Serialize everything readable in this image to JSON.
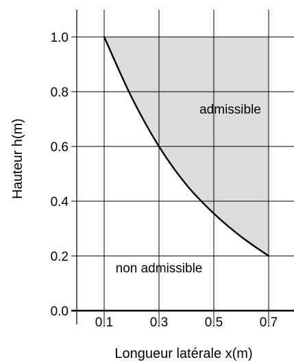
{
  "chart_data": {
    "type": "area",
    "xlabel": "Longueur latérale x(m)",
    "ylabel": "Hauteur h(m)",
    "xlim": [
      0.0,
      0.8
    ],
    "ylim": [
      0.0,
      1.0
    ],
    "x_ticks": [
      0.1,
      0.3,
      0.5,
      0.7
    ],
    "x_tick_labels": [
      "0.1",
      "0.3",
      "0.5",
      "0.7"
    ],
    "y_ticks": [
      0.0,
      0.2,
      0.4,
      0.6,
      0.8,
      1.0
    ],
    "y_tick_labels": [
      "0.0",
      "0.2",
      "0.4",
      "0.6",
      "0.8",
      "1.0"
    ],
    "grid": true,
    "series": [
      {
        "x": [
          0.1,
          0.2,
          0.3,
          0.4,
          0.5,
          0.6,
          0.7
        ],
        "y": [
          1.0,
          0.78,
          0.6,
          0.46,
          0.355,
          0.27,
          0.2
        ]
      }
    ],
    "fill": {
      "region": "above-curve",
      "upper_bound": 1.0,
      "x_range": [
        0.1,
        0.7
      ],
      "color": "#dcdcdc"
    },
    "curve_color": "#000000",
    "annotations": [
      {
        "text": "admissible",
        "x": 0.56,
        "y": 0.72
      },
      {
        "text": "non admissible",
        "x": 0.3,
        "y": 0.14
      }
    ]
  }
}
